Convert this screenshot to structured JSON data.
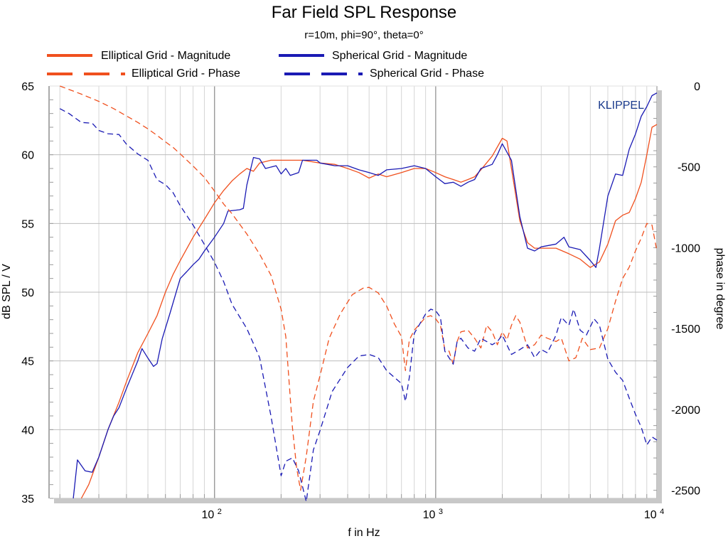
{
  "chart_data": {
    "type": "line",
    "title": "Far Field SPL Response",
    "subtitle": "r=10m, phi=90°, theta=0°",
    "xlabel": "f in Hz",
    "ylabel": "dB SPL / V",
    "ylabel_right": "phase in degree",
    "watermark": "KLIPPEL",
    "xscale": "log",
    "xlim": [
      18,
      10000
    ],
    "ylim": [
      35,
      65
    ],
    "y2lim": [
      -2550,
      0
    ],
    "grid": true,
    "legend_position": "top",
    "x_ticks": [
      {
        "value": 100,
        "base": "10",
        "exp": "2"
      },
      {
        "value": 1000,
        "base": "10",
        "exp": "3"
      },
      {
        "value": 10000,
        "base": "10",
        "exp": "4"
      }
    ],
    "y_ticks": [
      "35",
      "40",
      "45",
      "50",
      "55",
      "60",
      "65"
    ],
    "y2_ticks": [
      "0",
      "-500",
      "-1000",
      "-1500",
      "-2000",
      "-2500"
    ],
    "colors": {
      "elliptical": "#f0501e",
      "spherical": "#1a1ab4"
    },
    "series": [
      {
        "name": "Elliptical Grid - Magnitude",
        "axis": "left",
        "color": "#f0501e",
        "dash": false,
        "points": [
          [
            25,
            35
          ],
          [
            27,
            36
          ],
          [
            30,
            38
          ],
          [
            33,
            40
          ],
          [
            37,
            42
          ],
          [
            40,
            43.5
          ],
          [
            45,
            45.6
          ],
          [
            50,
            47
          ],
          [
            55,
            48.3
          ],
          [
            60,
            50
          ],
          [
            65,
            51.3
          ],
          [
            70,
            52.3
          ],
          [
            80,
            54
          ],
          [
            90,
            55.3
          ],
          [
            100,
            56.5
          ],
          [
            110,
            57.4
          ],
          [
            120,
            58.1
          ],
          [
            130,
            58.6
          ],
          [
            140,
            59
          ],
          [
            150,
            58.8
          ],
          [
            160,
            59.4
          ],
          [
            180,
            59.6
          ],
          [
            200,
            59.6
          ],
          [
            250,
            59.6
          ],
          [
            300,
            59.4
          ],
          [
            350,
            59.3
          ],
          [
            400,
            59
          ],
          [
            450,
            58.7
          ],
          [
            500,
            58.3
          ],
          [
            550,
            58.6
          ],
          [
            600,
            58.4
          ],
          [
            700,
            58.7
          ],
          [
            800,
            59
          ],
          [
            900,
            59
          ],
          [
            1000,
            58.7
          ],
          [
            1100,
            58.4
          ],
          [
            1200,
            58.2
          ],
          [
            1300,
            58
          ],
          [
            1400,
            58.2
          ],
          [
            1500,
            58.4
          ],
          [
            1600,
            58.9
          ],
          [
            1800,
            59.9
          ],
          [
            2000,
            61.2
          ],
          [
            2100,
            61
          ],
          [
            2200,
            59
          ],
          [
            2400,
            55.2
          ],
          [
            2600,
            53.6
          ],
          [
            2800,
            53.2
          ],
          [
            3000,
            53.2
          ],
          [
            3500,
            53.2
          ],
          [
            4000,
            52.8
          ],
          [
            4500,
            52.4
          ],
          [
            5000,
            51.8
          ],
          [
            5500,
            52.2
          ],
          [
            6000,
            53.5
          ],
          [
            6500,
            55.2
          ],
          [
            7000,
            55.6
          ],
          [
            7500,
            55.8
          ],
          [
            8000,
            56.8
          ],
          [
            8500,
            58
          ],
          [
            9000,
            60
          ],
          [
            9500,
            62
          ],
          [
            10000,
            62.2
          ]
        ]
      },
      {
        "name": "Spherical Grid - Magnitude",
        "axis": "left",
        "color": "#1a1ab4",
        "dash": false,
        "points": [
          [
            23,
            35
          ],
          [
            24,
            37.8
          ],
          [
            26,
            37
          ],
          [
            28,
            36.9
          ],
          [
            30,
            38
          ],
          [
            33,
            40
          ],
          [
            35,
            41
          ],
          [
            37,
            41.6
          ],
          [
            40,
            43
          ],
          [
            45,
            45
          ],
          [
            47,
            45.9
          ],
          [
            50,
            45.2
          ],
          [
            53,
            44.6
          ],
          [
            55,
            44.8
          ],
          [
            58,
            46.6
          ],
          [
            63,
            48.5
          ],
          [
            70,
            51
          ],
          [
            75,
            51.5
          ],
          [
            80,
            52
          ],
          [
            85,
            52.4
          ],
          [
            90,
            53
          ],
          [
            100,
            54
          ],
          [
            110,
            55
          ],
          [
            115,
            55.9
          ],
          [
            130,
            56
          ],
          [
            135,
            56.1
          ],
          [
            140,
            57.8
          ],
          [
            150,
            59.8
          ],
          [
            160,
            59.7
          ],
          [
            170,
            59
          ],
          [
            190,
            59.2
          ],
          [
            200,
            58.6
          ],
          [
            210,
            59
          ],
          [
            220,
            58.5
          ],
          [
            240,
            58.7
          ],
          [
            250,
            59.6
          ],
          [
            270,
            59.6
          ],
          [
            290,
            59.6
          ],
          [
            300,
            59.4
          ],
          [
            350,
            59.2
          ],
          [
            400,
            59.2
          ],
          [
            450,
            58.9
          ],
          [
            500,
            58.7
          ],
          [
            550,
            58.5
          ],
          [
            600,
            58.9
          ],
          [
            700,
            59
          ],
          [
            800,
            59.2
          ],
          [
            900,
            59
          ],
          [
            1000,
            58.4
          ],
          [
            1100,
            57.9
          ],
          [
            1200,
            58
          ],
          [
            1300,
            57.7
          ],
          [
            1400,
            58
          ],
          [
            1500,
            58.2
          ],
          [
            1600,
            59
          ],
          [
            1800,
            59.3
          ],
          [
            1900,
            60
          ],
          [
            2000,
            60.8
          ],
          [
            2200,
            59.6
          ],
          [
            2400,
            55.5
          ],
          [
            2600,
            53.2
          ],
          [
            2800,
            53
          ],
          [
            3000,
            53.3
          ],
          [
            3500,
            53.5
          ],
          [
            3800,
            54
          ],
          [
            4000,
            53.3
          ],
          [
            4500,
            53.1
          ],
          [
            5000,
            52.3
          ],
          [
            5300,
            51.8
          ],
          [
            5500,
            53.2
          ],
          [
            6000,
            57
          ],
          [
            6500,
            58.6
          ],
          [
            7000,
            58.5
          ],
          [
            7500,
            60.4
          ],
          [
            8000,
            61.5
          ],
          [
            8500,
            62.8
          ],
          [
            9000,
            63.5
          ],
          [
            9500,
            64.3
          ],
          [
            10000,
            64.5
          ]
        ]
      },
      {
        "name": "Elliptical Grid - Phase",
        "axis": "right",
        "color": "#f0501e",
        "dash": true,
        "points": [
          [
            20,
            0
          ],
          [
            25,
            -50
          ],
          [
            30,
            -95
          ],
          [
            35,
            -140
          ],
          [
            40,
            -185
          ],
          [
            45,
            -225
          ],
          [
            50,
            -265
          ],
          [
            55,
            -305
          ],
          [
            60,
            -345
          ],
          [
            65,
            -380
          ],
          [
            70,
            -420
          ],
          [
            80,
            -495
          ],
          [
            90,
            -565
          ],
          [
            100,
            -650
          ],
          [
            110,
            -730
          ],
          [
            120,
            -790
          ],
          [
            140,
            -915
          ],
          [
            160,
            -1040
          ],
          [
            180,
            -1170
          ],
          [
            200,
            -1380
          ],
          [
            210,
            -1550
          ],
          [
            225,
            -2110
          ],
          [
            235,
            -2360
          ],
          [
            245,
            -2500
          ],
          [
            260,
            -2290
          ],
          [
            280,
            -1950
          ],
          [
            300,
            -1790
          ],
          [
            330,
            -1560
          ],
          [
            370,
            -1410
          ],
          [
            420,
            -1290
          ],
          [
            470,
            -1250
          ],
          [
            500,
            -1245
          ],
          [
            550,
            -1280
          ],
          [
            600,
            -1360
          ],
          [
            650,
            -1470
          ],
          [
            700,
            -1550
          ],
          [
            730,
            -1760
          ],
          [
            760,
            -1570
          ],
          [
            800,
            -1510
          ],
          [
            900,
            -1430
          ],
          [
            950,
            -1420
          ],
          [
            1000,
            -1440
          ],
          [
            1050,
            -1480
          ],
          [
            1100,
            -1630
          ],
          [
            1150,
            -1640
          ],
          [
            1200,
            -1720
          ],
          [
            1250,
            -1580
          ],
          [
            1300,
            -1520
          ],
          [
            1400,
            -1510
          ],
          [
            1500,
            -1560
          ],
          [
            1600,
            -1620
          ],
          [
            1700,
            -1480
          ],
          [
            1800,
            -1520
          ],
          [
            1900,
            -1600
          ],
          [
            2000,
            -1520
          ],
          [
            2100,
            -1570
          ],
          [
            2200,
            -1480
          ],
          [
            2300,
            -1420
          ],
          [
            2400,
            -1460
          ],
          [
            2600,
            -1620
          ],
          [
            2800,
            -1600
          ],
          [
            3000,
            -1540
          ],
          [
            3200,
            -1560
          ],
          [
            3500,
            -1580
          ],
          [
            3700,
            -1560
          ],
          [
            4000,
            -1700
          ],
          [
            4300,
            -1680
          ],
          [
            4600,
            -1560
          ],
          [
            5000,
            -1630
          ],
          [
            5500,
            -1620
          ],
          [
            6000,
            -1500
          ],
          [
            6500,
            -1330
          ],
          [
            7000,
            -1190
          ],
          [
            7500,
            -1120
          ],
          [
            8000,
            -1020
          ],
          [
            8500,
            -940
          ],
          [
            9000,
            -850
          ],
          [
            9500,
            -860
          ],
          [
            10000,
            -1020
          ]
        ]
      },
      {
        "name": "Spherical Grid - Phase",
        "axis": "right",
        "color": "#1a1ab4",
        "dash": true,
        "points": [
          [
            20,
            -140
          ],
          [
            22,
            -170
          ],
          [
            25,
            -225
          ],
          [
            28,
            -230
          ],
          [
            30,
            -275
          ],
          [
            33,
            -295
          ],
          [
            37,
            -300
          ],
          [
            40,
            -360
          ],
          [
            45,
            -420
          ],
          [
            50,
            -460
          ],
          [
            55,
            -580
          ],
          [
            60,
            -610
          ],
          [
            65,
            -660
          ],
          [
            70,
            -740
          ],
          [
            80,
            -860
          ],
          [
            90,
            -980
          ],
          [
            100,
            -1090
          ],
          [
            110,
            -1210
          ],
          [
            120,
            -1350
          ],
          [
            140,
            -1500
          ],
          [
            160,
            -1680
          ],
          [
            180,
            -2040
          ],
          [
            200,
            -2410
          ],
          [
            210,
            -2320
          ],
          [
            225,
            -2300
          ],
          [
            240,
            -2380
          ],
          [
            260,
            -2570
          ],
          [
            280,
            -2250
          ],
          [
            300,
            -2130
          ],
          [
            340,
            -1890
          ],
          [
            400,
            -1740
          ],
          [
            450,
            -1670
          ],
          [
            500,
            -1660
          ],
          [
            550,
            -1680
          ],
          [
            600,
            -1760
          ],
          [
            700,
            -1840
          ],
          [
            730,
            -1950
          ],
          [
            760,
            -1800
          ],
          [
            800,
            -1530
          ],
          [
            900,
            -1410
          ],
          [
            950,
            -1380
          ],
          [
            1000,
            -1390
          ],
          [
            1050,
            -1430
          ],
          [
            1100,
            -1640
          ],
          [
            1200,
            -1720
          ],
          [
            1250,
            -1580
          ],
          [
            1300,
            -1560
          ],
          [
            1400,
            -1620
          ],
          [
            1500,
            -1640
          ],
          [
            1600,
            -1560
          ],
          [
            1700,
            -1580
          ],
          [
            1800,
            -1600
          ],
          [
            1900,
            -1580
          ],
          [
            2000,
            -1540
          ],
          [
            2200,
            -1660
          ],
          [
            2400,
            -1630
          ],
          [
            2600,
            -1600
          ],
          [
            2800,
            -1680
          ],
          [
            3000,
            -1630
          ],
          [
            3200,
            -1650
          ],
          [
            3500,
            -1540
          ],
          [
            3700,
            -1430
          ],
          [
            4000,
            -1480
          ],
          [
            4200,
            -1380
          ],
          [
            4500,
            -1510
          ],
          [
            4800,
            -1540
          ],
          [
            5200,
            -1440
          ],
          [
            5500,
            -1480
          ],
          [
            6000,
            -1690
          ],
          [
            6500,
            -1770
          ],
          [
            7000,
            -1820
          ],
          [
            7500,
            -1930
          ],
          [
            8000,
            -2030
          ],
          [
            8500,
            -2110
          ],
          [
            9000,
            -2220
          ],
          [
            9500,
            -2170
          ],
          [
            10000,
            -2190
          ]
        ]
      }
    ]
  }
}
